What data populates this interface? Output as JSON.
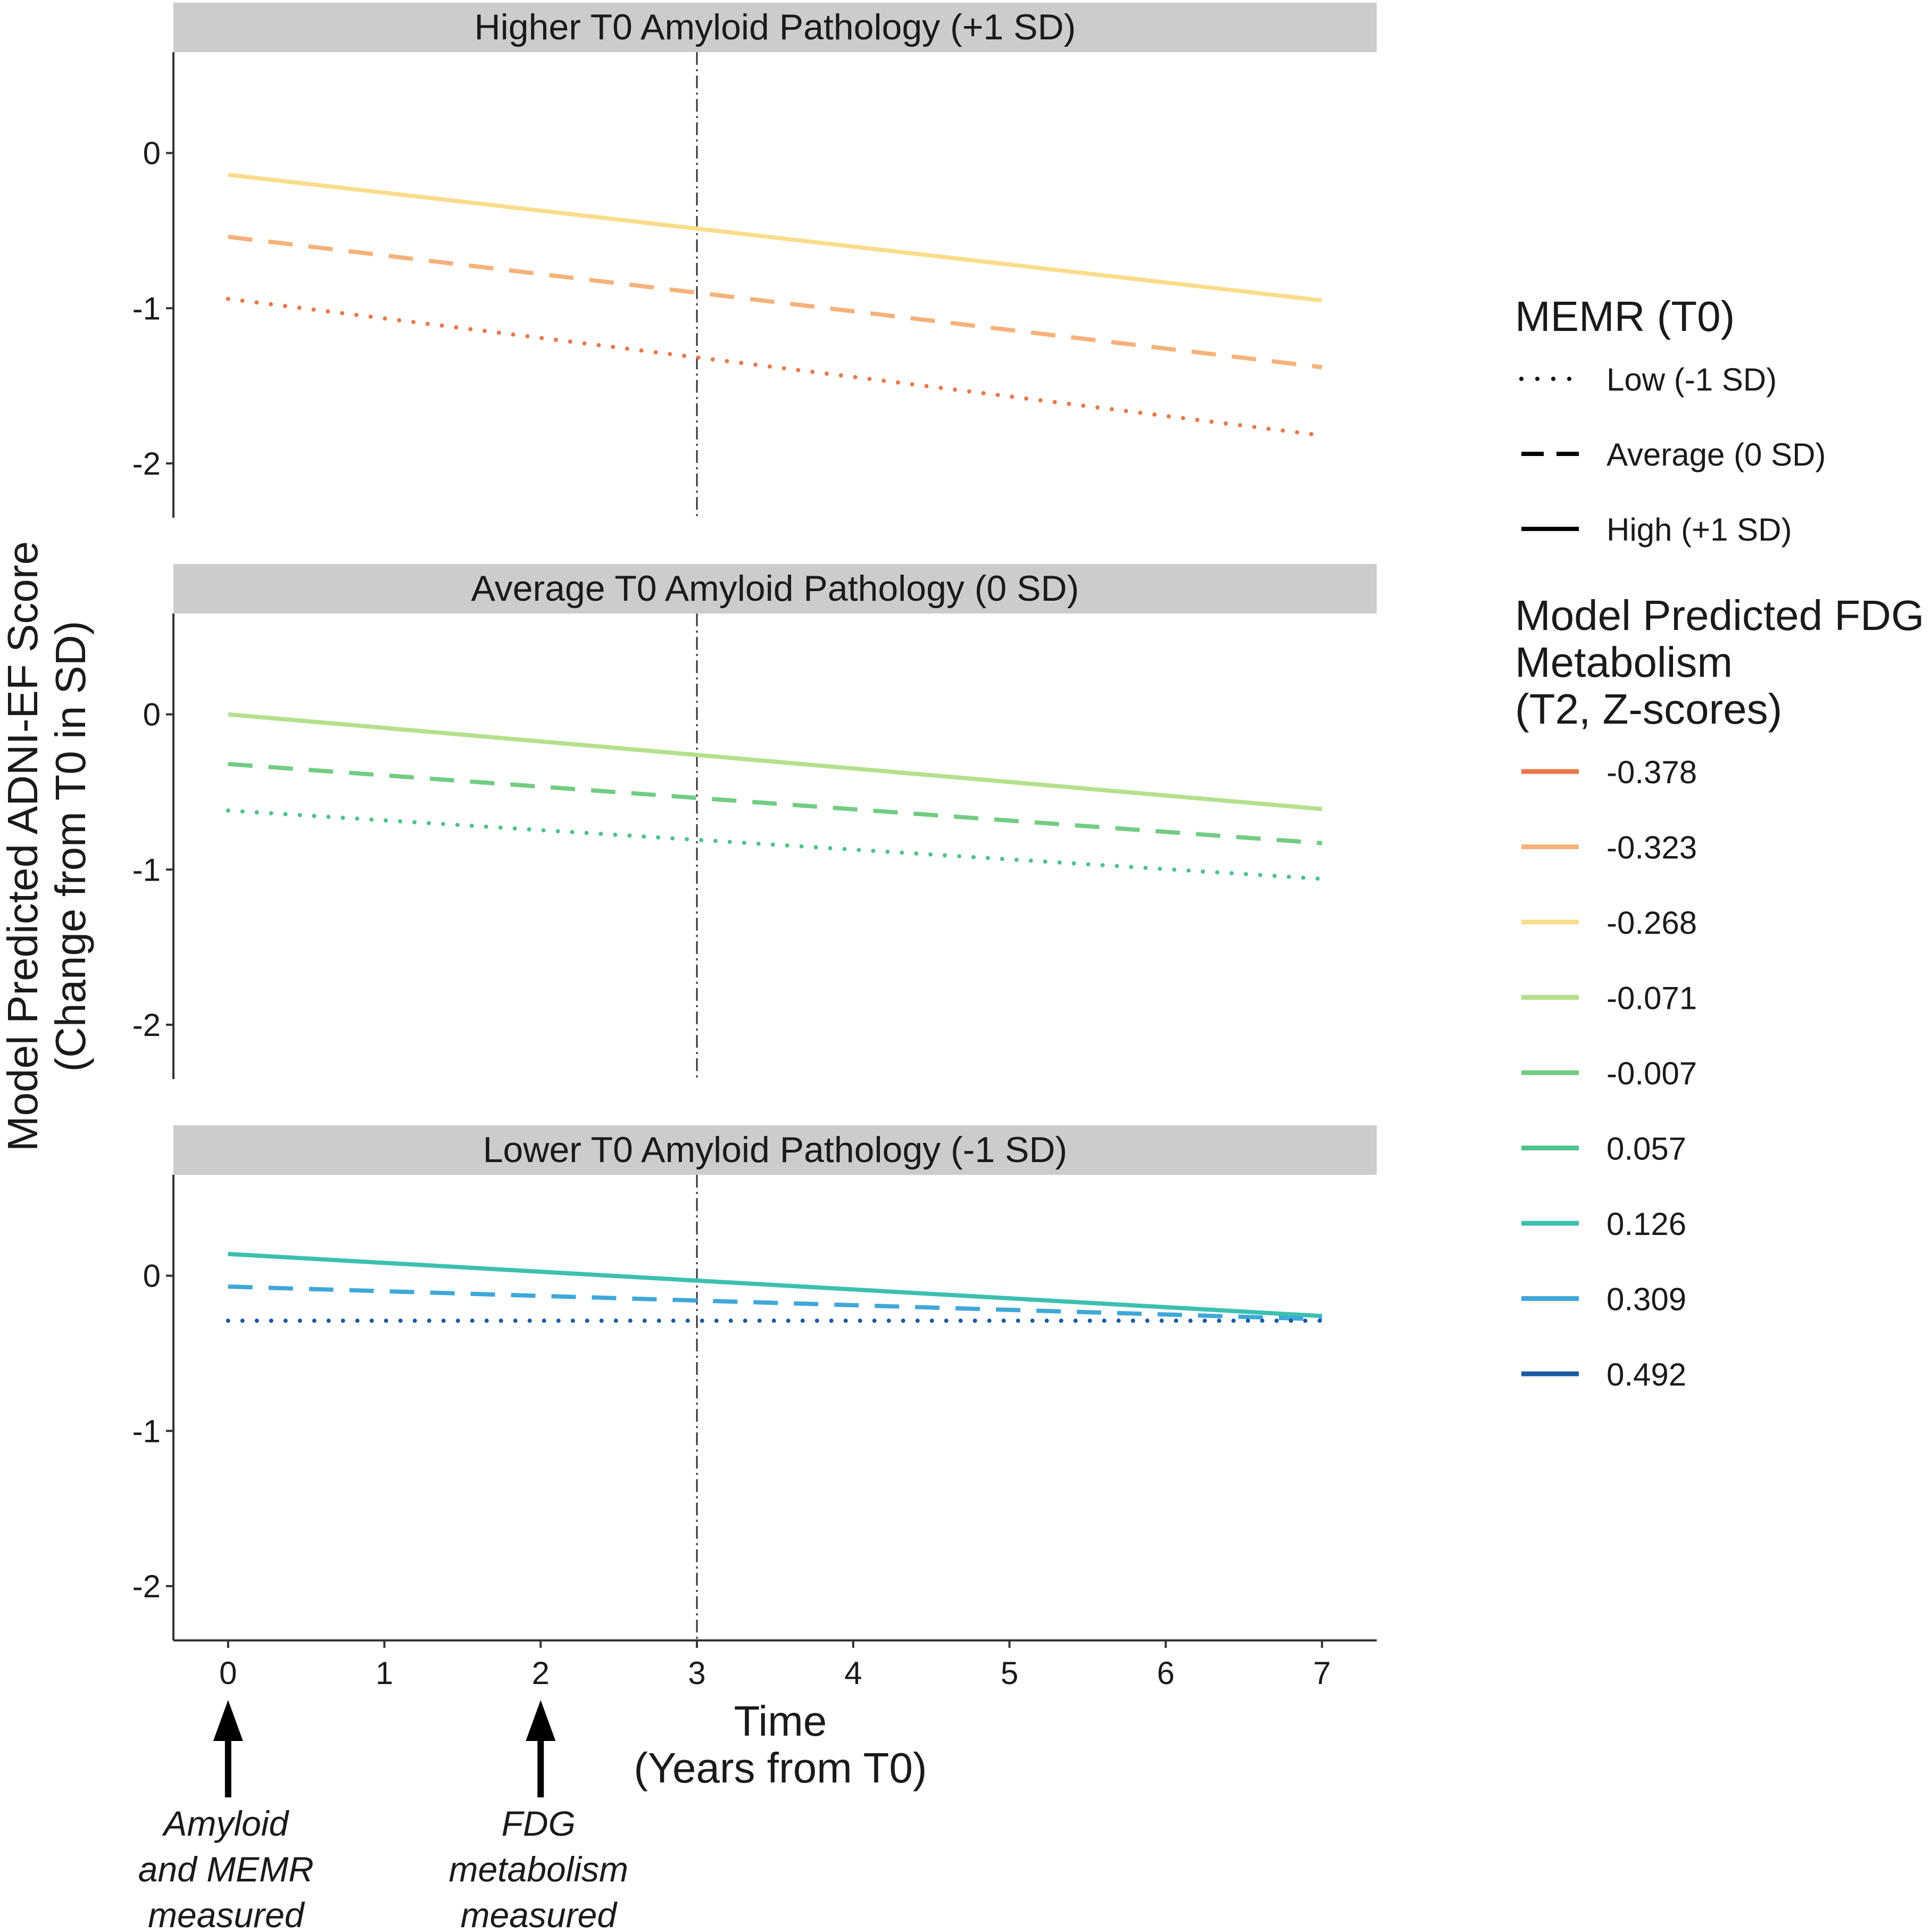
{
  "chart_data": {
    "type": "line",
    "facets": [
      {
        "title": "Higher T0 Amyloid Pathology (+1 SD)",
        "series": [
          {
            "memr": "High (+1 SD)",
            "fdg": "-0.268",
            "x": [
              0,
              7
            ],
            "y": [
              -0.14,
              -0.95
            ]
          },
          {
            "memr": "Average (0 SD)",
            "fdg": "-0.323",
            "x": [
              0,
              7
            ],
            "y": [
              -0.54,
              -1.38
            ]
          },
          {
            "memr": "Low (-1 SD)",
            "fdg": "-0.378",
            "x": [
              0,
              7
            ],
            "y": [
              -0.94,
              -1.82
            ]
          }
        ]
      },
      {
        "title": "Average T0 Amyloid Pathology (0 SD)",
        "series": [
          {
            "memr": "High (+1 SD)",
            "fdg": "-0.071",
            "x": [
              0,
              7
            ],
            "y": [
              0.0,
              -0.61
            ]
          },
          {
            "memr": "Average (0 SD)",
            "fdg": "-0.007",
            "x": [
              0,
              7
            ],
            "y": [
              -0.32,
              -0.83
            ]
          },
          {
            "memr": "Low (-1 SD)",
            "fdg": "0.057",
            "x": [
              0,
              7
            ],
            "y": [
              -0.62,
              -1.06
            ]
          }
        ]
      },
      {
        "title": "Lower T0 Amyloid Pathology (-1 SD)",
        "series": [
          {
            "memr": "High (+1 SD)",
            "fdg": "0.126",
            "x": [
              0,
              7
            ],
            "y": [
              0.14,
              -0.26
            ]
          },
          {
            "memr": "Average (0 SD)",
            "fdg": "0.309",
            "x": [
              0,
              7
            ],
            "y": [
              -0.07,
              -0.28
            ]
          },
          {
            "memr": "Low (-1 SD)",
            "fdg": "0.492",
            "x": [
              0,
              7
            ],
            "y": [
              -0.29,
              -0.29
            ]
          }
        ]
      }
    ],
    "xlabel_line1": "Time",
    "xlabel_line2": "(Years from T0)",
    "ylabel_line1": "Model Predicted ADNI-EF Score",
    "ylabel_line2": "(Change from T0 in SD)",
    "xlim": [
      -0.35,
      7.35
    ],
    "ylim": [
      -2.35,
      0.65
    ],
    "xticks": [
      0,
      1,
      2,
      3,
      4,
      5,
      6,
      7
    ],
    "yticks": [
      0,
      -1,
      -2
    ],
    "reference_line_x": 3,
    "legend_memr": {
      "title": "MEMR (T0)",
      "items": [
        {
          "label": "Low (-1 SD)",
          "style": "dotted"
        },
        {
          "label": "Average (0 SD)",
          "style": "dashed"
        },
        {
          "label": "High (+1 SD)",
          "style": "solid"
        }
      ]
    },
    "legend_fdg": {
      "title_lines": [
        "Model Predicted FDG",
        "Metabolism",
        "(T2, Z-scores)"
      ],
      "items": [
        {
          "label": "-0.378",
          "color": "#e8784b"
        },
        {
          "label": "-0.323",
          "color": "#f4b27a"
        },
        {
          "label": "-0.268",
          "color": "#fadc8c"
        },
        {
          "label": "-0.071",
          "color": "#b4e08c"
        },
        {
          "label": "-0.007",
          "color": "#72cc82"
        },
        {
          "label": "0.057",
          "color": "#4ec38c"
        },
        {
          "label": "0.126",
          "color": "#3cc0b0"
        },
        {
          "label": "0.309",
          "color": "#3ea8d8"
        },
        {
          "label": "0.492",
          "color": "#1a5aa0"
        }
      ]
    },
    "annotations": [
      {
        "x": 0,
        "lines": [
          "Amyloid",
          "and MEMR",
          "measured"
        ]
      },
      {
        "x": 2,
        "lines": [
          "FDG",
          "metabolism",
          "measured"
        ]
      }
    ]
  }
}
